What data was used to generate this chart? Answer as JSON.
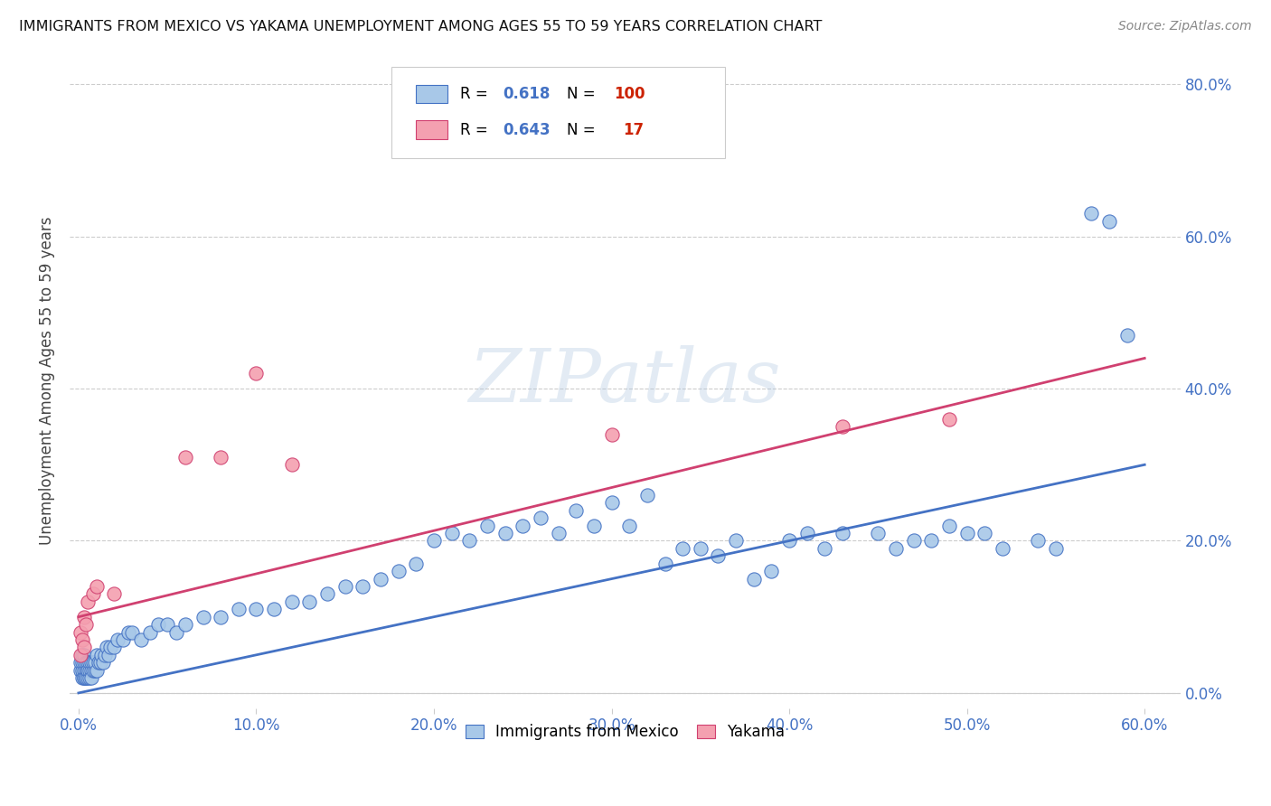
{
  "title": "IMMIGRANTS FROM MEXICO VS YAKAMA UNEMPLOYMENT AMONG AGES 55 TO 59 YEARS CORRELATION CHART",
  "source": "Source: ZipAtlas.com",
  "ylabel_label": "Unemployment Among Ages 55 to 59 years",
  "xlim": [
    -0.005,
    0.62
  ],
  "ylim": [
    -0.02,
    0.84
  ],
  "x_tick_vals": [
    0.0,
    0.1,
    0.2,
    0.3,
    0.4,
    0.5,
    0.6
  ],
  "y_tick_vals": [
    0.0,
    0.2,
    0.4,
    0.6,
    0.8
  ],
  "legend_blue_r": "0.618",
  "legend_blue_n": "100",
  "legend_pink_r": "0.643",
  "legend_pink_n": "17",
  "blue_color": "#a8c8e8",
  "pink_color": "#f4a0b0",
  "line_blue": "#4472c4",
  "line_pink": "#d04070",
  "tick_color": "#4472c4",
  "watermark_text": "ZIPatlas",
  "blue_line_x0": 0.0,
  "blue_line_x1": 0.6,
  "blue_line_y0": 0.0,
  "blue_line_y1": 0.3,
  "pink_line_x0": 0.0,
  "pink_line_x1": 0.6,
  "pink_line_y0": 0.1,
  "pink_line_y1": 0.44,
  "blue_scatter_x": [
    0.001,
    0.001,
    0.002,
    0.002,
    0.002,
    0.002,
    0.003,
    0.003,
    0.003,
    0.003,
    0.003,
    0.004,
    0.004,
    0.004,
    0.004,
    0.005,
    0.005,
    0.005,
    0.005,
    0.006,
    0.006,
    0.006,
    0.007,
    0.007,
    0.007,
    0.008,
    0.008,
    0.009,
    0.009,
    0.01,
    0.01,
    0.011,
    0.012,
    0.013,
    0.014,
    0.015,
    0.016,
    0.017,
    0.018,
    0.02,
    0.022,
    0.025,
    0.028,
    0.03,
    0.035,
    0.04,
    0.045,
    0.05,
    0.055,
    0.06,
    0.07,
    0.08,
    0.09,
    0.1,
    0.11,
    0.12,
    0.13,
    0.14,
    0.15,
    0.16,
    0.17,
    0.18,
    0.19,
    0.2,
    0.21,
    0.22,
    0.23,
    0.24,
    0.25,
    0.26,
    0.27,
    0.28,
    0.29,
    0.3,
    0.31,
    0.32,
    0.33,
    0.34,
    0.35,
    0.36,
    0.37,
    0.38,
    0.39,
    0.4,
    0.41,
    0.42,
    0.43,
    0.45,
    0.46,
    0.47,
    0.48,
    0.49,
    0.5,
    0.51,
    0.52,
    0.54,
    0.55,
    0.57,
    0.58,
    0.59
  ],
  "blue_scatter_y": [
    0.03,
    0.04,
    0.02,
    0.03,
    0.04,
    0.05,
    0.02,
    0.03,
    0.04,
    0.02,
    0.05,
    0.02,
    0.03,
    0.04,
    0.02,
    0.03,
    0.04,
    0.02,
    0.03,
    0.02,
    0.03,
    0.04,
    0.03,
    0.02,
    0.04,
    0.03,
    0.04,
    0.03,
    0.04,
    0.03,
    0.05,
    0.04,
    0.04,
    0.05,
    0.04,
    0.05,
    0.06,
    0.05,
    0.06,
    0.06,
    0.07,
    0.07,
    0.08,
    0.08,
    0.07,
    0.08,
    0.09,
    0.09,
    0.08,
    0.09,
    0.1,
    0.1,
    0.11,
    0.11,
    0.11,
    0.12,
    0.12,
    0.13,
    0.14,
    0.14,
    0.15,
    0.16,
    0.17,
    0.2,
    0.21,
    0.2,
    0.22,
    0.21,
    0.22,
    0.23,
    0.21,
    0.24,
    0.22,
    0.25,
    0.22,
    0.26,
    0.17,
    0.19,
    0.19,
    0.18,
    0.2,
    0.15,
    0.16,
    0.2,
    0.21,
    0.19,
    0.21,
    0.21,
    0.19,
    0.2,
    0.2,
    0.22,
    0.21,
    0.21,
    0.19,
    0.2,
    0.19,
    0.63,
    0.62,
    0.47
  ],
  "pink_scatter_x": [
    0.001,
    0.001,
    0.002,
    0.003,
    0.003,
    0.004,
    0.005,
    0.008,
    0.01,
    0.02,
    0.06,
    0.08,
    0.1,
    0.12,
    0.3,
    0.43,
    0.49
  ],
  "pink_scatter_y": [
    0.05,
    0.08,
    0.07,
    0.06,
    0.1,
    0.09,
    0.12,
    0.13,
    0.14,
    0.13,
    0.31,
    0.31,
    0.42,
    0.3,
    0.34,
    0.35,
    0.36
  ]
}
